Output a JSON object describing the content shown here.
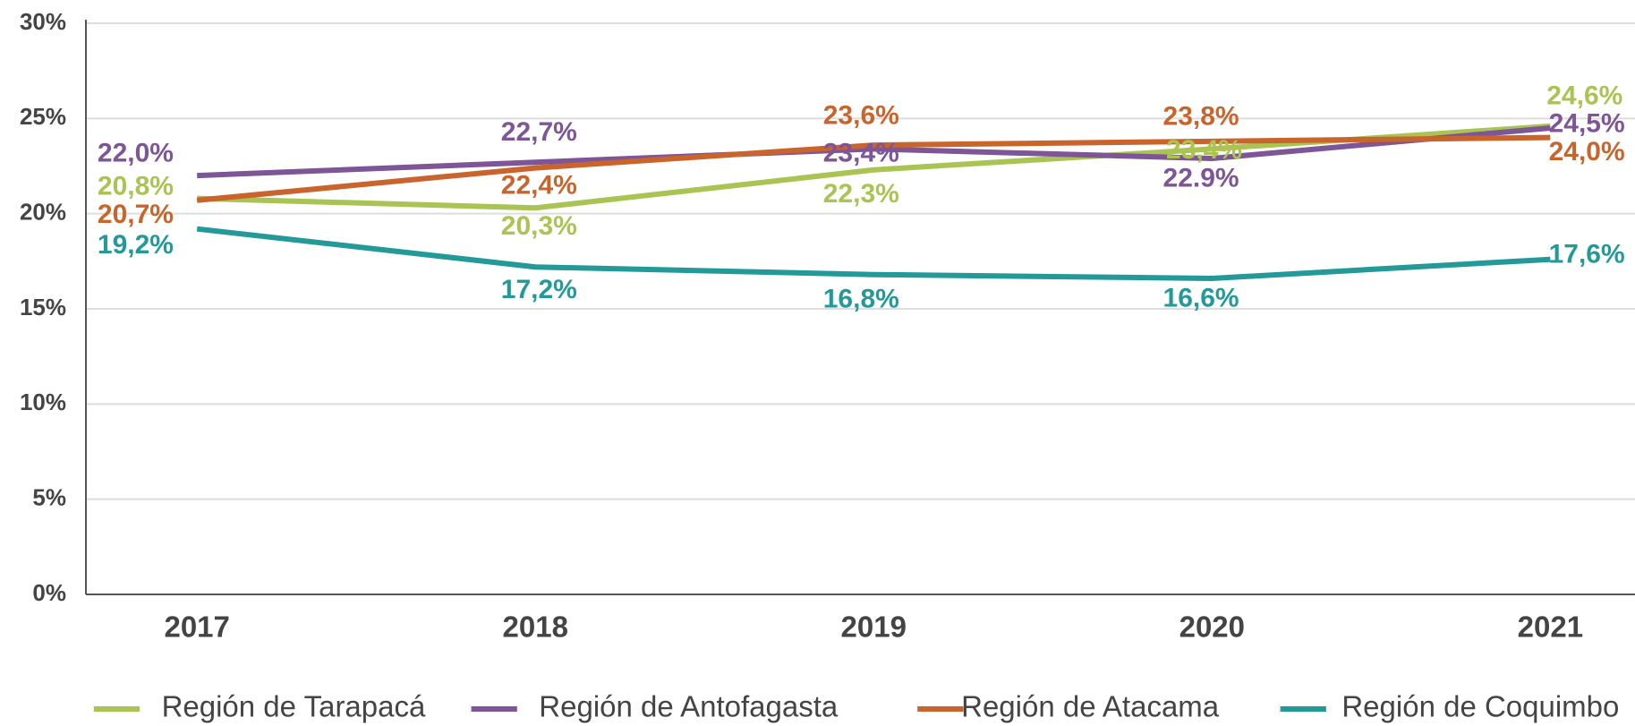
{
  "chart_data": {
    "type": "line",
    "categories": [
      "2017",
      "2018",
      "2019",
      "2020",
      "2021"
    ],
    "series": [
      {
        "name": "Región de Tarapacá",
        "color": "#a9c452",
        "values": [
          20.8,
          20.3,
          22.3,
          23.4,
          24.6
        ],
        "value_labels": [
          "20,8%",
          "20,3%",
          "22,3%",
          "23,4%",
          "24,6%"
        ]
      },
      {
        "name": "Región de Antofagasta",
        "color": "#7e5596",
        "values": [
          22.0,
          22.7,
          23.4,
          22.9,
          24.5
        ],
        "value_labels": [
          "22,0%",
          "22,7%",
          "23,4%",
          "22.9%",
          "24,5%"
        ]
      },
      {
        "name": "Región de Atacama",
        "color": "#c9642c",
        "values": [
          20.7,
          22.4,
          23.6,
          23.8,
          24.0
        ],
        "value_labels": [
          "20,7%",
          "22,4%",
          "23,6%",
          "23,8%",
          "24,0%"
        ]
      },
      {
        "name": "Región de Coquimbo",
        "color": "#23999a",
        "values": [
          19.2,
          17.2,
          16.8,
          16.6,
          17.6
        ],
        "value_labels": [
          "19,2%",
          "17,2%",
          "16,8%",
          "16,6%",
          "17,6%"
        ]
      }
    ],
    "ylim": [
      0,
      30
    ],
    "yticks": [
      {
        "value": 0,
        "label": "0%"
      },
      {
        "value": 5,
        "label": "5%"
      },
      {
        "value": 10,
        "label": "10%"
      },
      {
        "value": 15,
        "label": "15%"
      },
      {
        "value": 20,
        "label": "20%"
      },
      {
        "value": 25,
        "label": "25%"
      },
      {
        "value": 30,
        "label": "30%"
      }
    ],
    "grid": true,
    "legend": "bottom"
  }
}
